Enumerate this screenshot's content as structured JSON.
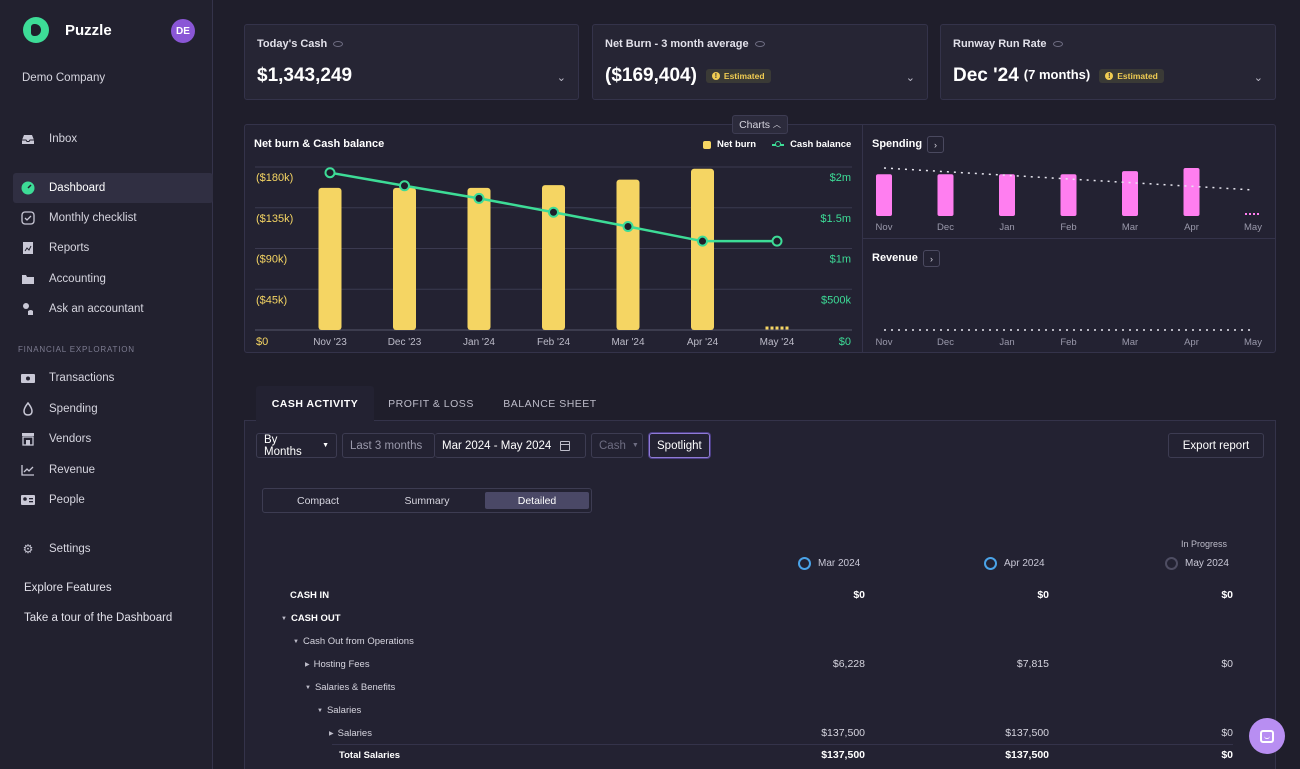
{
  "sidebar": {
    "brand": "Puzzle",
    "avatar_initials": "DE",
    "company": "Demo Company",
    "items": [
      {
        "label": "Inbox",
        "icon": "inbox-icon"
      },
      {
        "label": "Dashboard",
        "icon": "dashboard-icon"
      },
      {
        "label": "Monthly checklist",
        "icon": "checklist-icon"
      },
      {
        "label": "Reports",
        "icon": "reports-icon"
      },
      {
        "label": "Accounting",
        "icon": "accounting-icon"
      },
      {
        "label": "Ask an accountant",
        "icon": "accountant-icon"
      },
      {
        "label": "Transactions",
        "icon": "transactions-icon"
      },
      {
        "label": "Spending",
        "icon": "spending-icon"
      },
      {
        "label": "Vendors",
        "icon": "vendors-icon"
      },
      {
        "label": "Revenue",
        "icon": "revenue-icon"
      },
      {
        "label": "People",
        "icon": "people-icon"
      },
      {
        "label": "Settings",
        "icon": "gear-icon"
      }
    ],
    "section_label": "FINANCIAL EXPLORATION",
    "explore": "Explore Features",
    "tour": "Take a tour of the Dashboard"
  },
  "cards": {
    "cash": {
      "title": "Today's Cash",
      "value": "$1,343,249"
    },
    "burn": {
      "title": "Net Burn - 3 month average",
      "value": "($169,404)",
      "badge": "Estimated"
    },
    "runway": {
      "title": "Runway Run Rate",
      "value": "Dec '24",
      "sub": "(7 months)",
      "badge": "Estimated"
    }
  },
  "charts_toggle": "Charts",
  "colors": {
    "bar": "#f5d563",
    "line": "#3ddc97",
    "spending": "#ff7ef0",
    "accent": "#8f7bd6"
  },
  "chart_data": [
    {
      "type": "bar",
      "title": "Net burn & Cash balance",
      "legend": [
        "Net burn",
        "Cash balance"
      ],
      "categories": [
        "Nov '23",
        "Dec '23",
        "Jan '24",
        "Feb '24",
        "Mar '24",
        "Apr '24",
        "May '24"
      ],
      "left_ticks": [
        "($180k)",
        "($135k)",
        "($90k)",
        "($45k)",
        "$0"
      ],
      "right_ticks": [
        "$2m",
        "$1.5m",
        "$1m",
        "$500k",
        "$0"
      ],
      "series": [
        {
          "name": "Net burn",
          "values": [
            157000,
            157000,
            157000,
            160000,
            166000,
            178000,
            4000
          ]
        },
        {
          "name": "Cash balance",
          "values": [
            1930000,
            1770000,
            1615000,
            1445000,
            1270000,
            1090000,
            1090000
          ]
        }
      ],
      "ylim_left": [
        0,
        180000
      ],
      "ylim_right": [
        0,
        2000000
      ]
    },
    {
      "type": "bar",
      "title": "Spending",
      "categories": [
        "Nov",
        "Dec",
        "Jan",
        "Feb",
        "Mar",
        "Apr",
        "May"
      ],
      "values": [
        40,
        40,
        40,
        40,
        43,
        46,
        2
      ]
    },
    {
      "type": "line",
      "title": "Revenue",
      "categories": [
        "Nov",
        "Dec",
        "Jan",
        "Feb",
        "Mar",
        "Apr",
        "May"
      ],
      "values": [
        0,
        0,
        0,
        0,
        0,
        0,
        0
      ]
    }
  ],
  "activity": {
    "tabs": [
      "CASH ACTIVITY",
      "PROFIT & LOSS",
      "BALANCE SHEET"
    ],
    "controls": {
      "by_months": "By Months",
      "last_3": "Last 3 months",
      "range": "Mar 2024 - May 2024",
      "cash": "Cash",
      "spotlight": "Spotlight",
      "export": "Export report"
    },
    "views": [
      "Compact",
      "Summary",
      "Detailed"
    ],
    "in_progress": "In Progress",
    "columns": [
      "Mar 2024",
      "Apr 2024",
      "May 2024"
    ],
    "rows": [
      {
        "label": "CASH IN",
        "values": [
          "$0",
          "$0",
          "$0"
        ]
      },
      {
        "label": "CASH OUT",
        "values": [
          "",
          "",
          ""
        ]
      },
      {
        "label": "Cash Out from Operations",
        "values": [
          "",
          "",
          ""
        ]
      },
      {
        "label": "Hosting Fees",
        "values": [
          "$6,228",
          "$7,815",
          "$0"
        ]
      },
      {
        "label": "Salaries & Benefits",
        "values": [
          "",
          "",
          ""
        ]
      },
      {
        "label": "Salaries",
        "values": [
          "",
          "",
          ""
        ]
      },
      {
        "label": "Salaries",
        "values": [
          "$137,500",
          "$137,500",
          "$0"
        ]
      },
      {
        "label": "Total Salaries",
        "values": [
          "$137,500",
          "$137,500",
          "$0"
        ]
      }
    ]
  }
}
